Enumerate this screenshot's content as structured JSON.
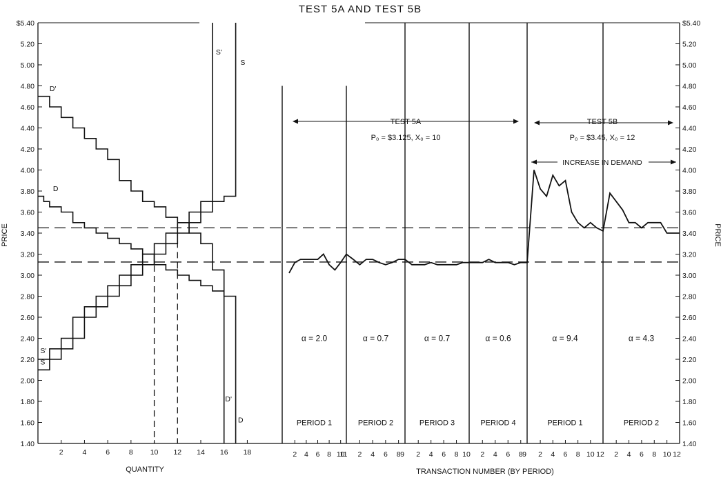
{
  "chart_data": {
    "type": "line",
    "title": "TEST 5A AND TEST 5B",
    "y_axis": {
      "label": "PRICE",
      "ylim": [
        1.4,
        5.4
      ],
      "ticks": [
        "$5.40",
        "5.20",
        "5.00",
        "4.80",
        "4.60",
        "4.40",
        "4.20",
        "4.00",
        "3.80",
        "3.60",
        "3.40",
        "3.20",
        "3.00",
        "2.80",
        "2.60",
        "2.40",
        "2.20",
        "2.00",
        "1.80",
        "1.60",
        "1.40"
      ],
      "tick_values": [
        5.4,
        5.2,
        5.0,
        4.8,
        4.6,
        4.4,
        4.2,
        4.0,
        3.8,
        3.6,
        3.4,
        3.2,
        3.0,
        2.8,
        2.6,
        2.4,
        2.2,
        2.0,
        1.8,
        1.6,
        1.4
      ],
      "right_ticks": [
        "$5.40",
        "5.20",
        "5.00",
        "4.80",
        "4.60",
        "4.40",
        "4.20",
        "4.00",
        "3.80",
        "3.60",
        "3.40",
        "3.20",
        "3.00",
        "2.80",
        "2.60",
        "2.40",
        "2.20",
        "2.00",
        "1.80",
        "1.60",
        "1.40"
      ]
    },
    "left_panel": {
      "xlabel": "QUANTITY",
      "xlim": [
        0,
        21
      ],
      "x_ticks": [
        "2",
        "4",
        "6",
        "8",
        "10",
        "12",
        "14",
        "16",
        "18"
      ],
      "x_tick_values": [
        2,
        4,
        6,
        8,
        10,
        12,
        14,
        16,
        18
      ],
      "series": [
        {
          "name": "D'",
          "label_at": [
            1,
            4.75
          ],
          "points": [
            [
              0,
              4.7
            ],
            [
              1,
              4.7
            ],
            [
              1,
              4.6
            ],
            [
              2,
              4.6
            ],
            [
              2,
              4.5
            ],
            [
              3,
              4.5
            ],
            [
              3,
              4.4
            ],
            [
              4,
              4.4
            ],
            [
              4,
              4.3
            ],
            [
              5,
              4.3
            ],
            [
              5,
              4.2
            ],
            [
              6,
              4.2
            ],
            [
              6,
              4.1
            ],
            [
              7,
              4.1
            ],
            [
              7,
              3.9
            ],
            [
              8,
              3.9
            ],
            [
              8,
              3.8
            ],
            [
              9,
              3.8
            ],
            [
              9,
              3.7
            ],
            [
              10,
              3.7
            ],
            [
              10,
              3.65
            ],
            [
              11,
              3.65
            ],
            [
              11,
              3.55
            ],
            [
              12,
              3.55
            ],
            [
              12,
              3.5
            ],
            [
              13,
              3.5
            ],
            [
              13,
              3.4
            ],
            [
              14,
              3.4
            ],
            [
              14,
              3.3
            ],
            [
              15,
              3.3
            ],
            [
              15,
              3.05
            ],
            [
              16,
              3.05
            ],
            [
              16,
              1.4
            ]
          ]
        },
        {
          "name": "D",
          "label_at": [
            1.3,
            3.8
          ],
          "points": [
            [
              0,
              3.75
            ],
            [
              0.5,
              3.75
            ],
            [
              0.5,
              3.7
            ],
            [
              1,
              3.7
            ],
            [
              1,
              3.65
            ],
            [
              2,
              3.65
            ],
            [
              2,
              3.6
            ],
            [
              3,
              3.6
            ],
            [
              3,
              3.5
            ],
            [
              4,
              3.5
            ],
            [
              4,
              3.45
            ],
            [
              5,
              3.45
            ],
            [
              5,
              3.4
            ],
            [
              6,
              3.4
            ],
            [
              6,
              3.35
            ],
            [
              7,
              3.35
            ],
            [
              7,
              3.3
            ],
            [
              8,
              3.3
            ],
            [
              8,
              3.25
            ],
            [
              9,
              3.25
            ],
            [
              9,
              3.2
            ],
            [
              10,
              3.2
            ],
            [
              10,
              3.1
            ],
            [
              11,
              3.1
            ],
            [
              11,
              3.05
            ],
            [
              12,
              3.05
            ],
            [
              12,
              3.0
            ],
            [
              13,
              3.0
            ],
            [
              13,
              2.95
            ],
            [
              14,
              2.95
            ],
            [
              14,
              2.9
            ],
            [
              15,
              2.9
            ],
            [
              15,
              2.85
            ],
            [
              16,
              2.85
            ],
            [
              16,
              2.8
            ],
            [
              17,
              2.8
            ],
            [
              17,
              1.4
            ]
          ]
        },
        {
          "name": "S",
          "label_at": [
            17.4,
            5.0
          ],
          "points": [
            [
              0,
              2.1
            ],
            [
              1,
              2.1
            ],
            [
              1,
              2.2
            ],
            [
              2,
              2.2
            ],
            [
              2,
              2.3
            ],
            [
              3,
              2.3
            ],
            [
              3,
              2.4
            ],
            [
              4,
              2.4
            ],
            [
              4,
              2.6
            ],
            [
              5,
              2.6
            ],
            [
              5,
              2.7
            ],
            [
              6,
              2.7
            ],
            [
              6,
              2.8
            ],
            [
              7,
              2.8
            ],
            [
              7,
              2.9
            ],
            [
              8,
              2.9
            ],
            [
              8,
              3.0
            ],
            [
              9,
              3.0
            ],
            [
              9,
              3.1
            ],
            [
              10,
              3.1
            ],
            [
              10,
              3.2
            ],
            [
              11,
              3.2
            ],
            [
              11,
              3.3
            ],
            [
              12,
              3.3
            ],
            [
              12,
              3.4
            ],
            [
              13,
              3.4
            ],
            [
              13,
              3.5
            ],
            [
              14,
              3.5
            ],
            [
              14,
              3.6
            ],
            [
              15,
              3.6
            ],
            [
              15,
              3.7
            ],
            [
              16,
              3.7
            ],
            [
              16,
              3.75
            ],
            [
              17,
              3.75
            ],
            [
              17,
              5.4
            ]
          ]
        },
        {
          "name": "S'",
          "label_at": [
            15.3,
            5.1
          ],
          "points": [
            [
              0,
              2.2
            ],
            [
              1,
              2.2
            ],
            [
              1,
              2.3
            ],
            [
              2,
              2.3
            ],
            [
              2,
              2.4
            ],
            [
              3,
              2.4
            ],
            [
              3,
              2.6
            ],
            [
              4,
              2.6
            ],
            [
              4,
              2.7
            ],
            [
              5,
              2.7
            ],
            [
              5,
              2.8
            ],
            [
              6,
              2.8
            ],
            [
              6,
              2.9
            ],
            [
              7,
              2.9
            ],
            [
              7,
              3.0
            ],
            [
              8,
              3.0
            ],
            [
              8,
              3.1
            ],
            [
              9,
              3.1
            ],
            [
              9,
              3.2
            ],
            [
              10,
              3.2
            ],
            [
              10,
              3.3
            ],
            [
              11,
              3.3
            ],
            [
              11,
              3.4
            ],
            [
              12,
              3.4
            ],
            [
              12,
              3.5
            ],
            [
              13,
              3.5
            ],
            [
              13,
              3.6
            ],
            [
              14,
              3.6
            ],
            [
              14,
              3.7
            ],
            [
              15,
              3.7
            ],
            [
              15,
              5.4
            ]
          ]
        }
      ],
      "low_labels": [
        {
          "text": "S'",
          "at": [
            0.2,
            2.26
          ]
        },
        {
          "text": "S",
          "at": [
            0.2,
            2.15
          ]
        },
        {
          "text": "D'",
          "at": [
            16.1,
            1.8
          ]
        },
        {
          "text": "D",
          "at": [
            17.2,
            1.6
          ]
        }
      ],
      "equilibrium_guides": [
        {
          "x": 10,
          "y": 3.125
        },
        {
          "x": 12,
          "y": 3.45
        }
      ]
    },
    "right_panel": {
      "xlabel": "TRANSACTION NUMBER (BY PERIOD)",
      "periods": [
        {
          "label": "PERIOD 1",
          "alpha": "α = 2.0",
          "n": 11,
          "ticks": [
            "2",
            "4",
            "6",
            "8",
            "10"
          ],
          "tick_values": [
            2,
            4,
            6,
            8,
            10
          ],
          "end_label": "11",
          "prices": [
            3.02,
            3.12,
            3.15,
            3.15,
            3.15,
            3.15,
            3.2,
            3.1,
            3.05,
            3.12,
            3.2
          ]
        },
        {
          "label": "PERIOD 2",
          "alpha": "α = 0.7",
          "n": 9,
          "ticks": [
            "2",
            "4",
            "6",
            "8"
          ],
          "tick_values": [
            2,
            4,
            6,
            8
          ],
          "end_label": "9",
          "prices": [
            3.15,
            3.1,
            3.15,
            3.15,
            3.12,
            3.1,
            3.12,
            3.15,
            3.15
          ]
        },
        {
          "label": "PERIOD 3",
          "alpha": "α = 0.7",
          "n": 10,
          "ticks": [
            "2",
            "4",
            "6",
            "8"
          ],
          "tick_values": [
            2,
            4,
            6,
            8
          ],
          "end_label": "10",
          "prices": [
            3.1,
            3.1,
            3.1,
            3.12,
            3.1,
            3.1,
            3.1,
            3.1,
            3.12,
            3.12
          ]
        },
        {
          "label": "PERIOD 4",
          "alpha": "α = 0.6",
          "n": 9,
          "ticks": [
            "2",
            "4",
            "6",
            "8"
          ],
          "tick_values": [
            2,
            4,
            6,
            8
          ],
          "end_label": "9",
          "prices": [
            3.12,
            3.12,
            3.15,
            3.12,
            3.12,
            3.12,
            3.1,
            3.12,
            3.12
          ]
        },
        {
          "label": "PERIOD 1",
          "alpha": "α = 9.4",
          "n": 12,
          "ticks": [
            "2",
            "4",
            "6",
            "8",
            "10"
          ],
          "tick_values": [
            2,
            4,
            6,
            8,
            10
          ],
          "end_label": "12",
          "prices": [
            4.0,
            3.82,
            3.75,
            3.95,
            3.85,
            3.9,
            3.6,
            3.5,
            3.45,
            3.5,
            3.45,
            3.42
          ]
        },
        {
          "label": "PERIOD 2",
          "alpha": "α = 4.3",
          "n": 12,
          "ticks": [
            "2",
            "4",
            "6",
            "8",
            "10"
          ],
          "tick_values": [
            2,
            4,
            6,
            8,
            10
          ],
          "end_label": "12",
          "prices": [
            3.78,
            3.7,
            3.62,
            3.5,
            3.5,
            3.45,
            3.5,
            3.5,
            3.5,
            3.4,
            3.4,
            3.4
          ]
        }
      ],
      "test_5a": {
        "label": "TEST 5A",
        "params": "P₀ = $3.125, X₀ = 10",
        "p0": 3.125
      },
      "test_5b": {
        "label": "TEST 5B",
        "params": "P₀ = $3.45, X₀ = 12",
        "p0": 3.45
      },
      "increase_label": "INCREASE IN DEMAND"
    }
  }
}
